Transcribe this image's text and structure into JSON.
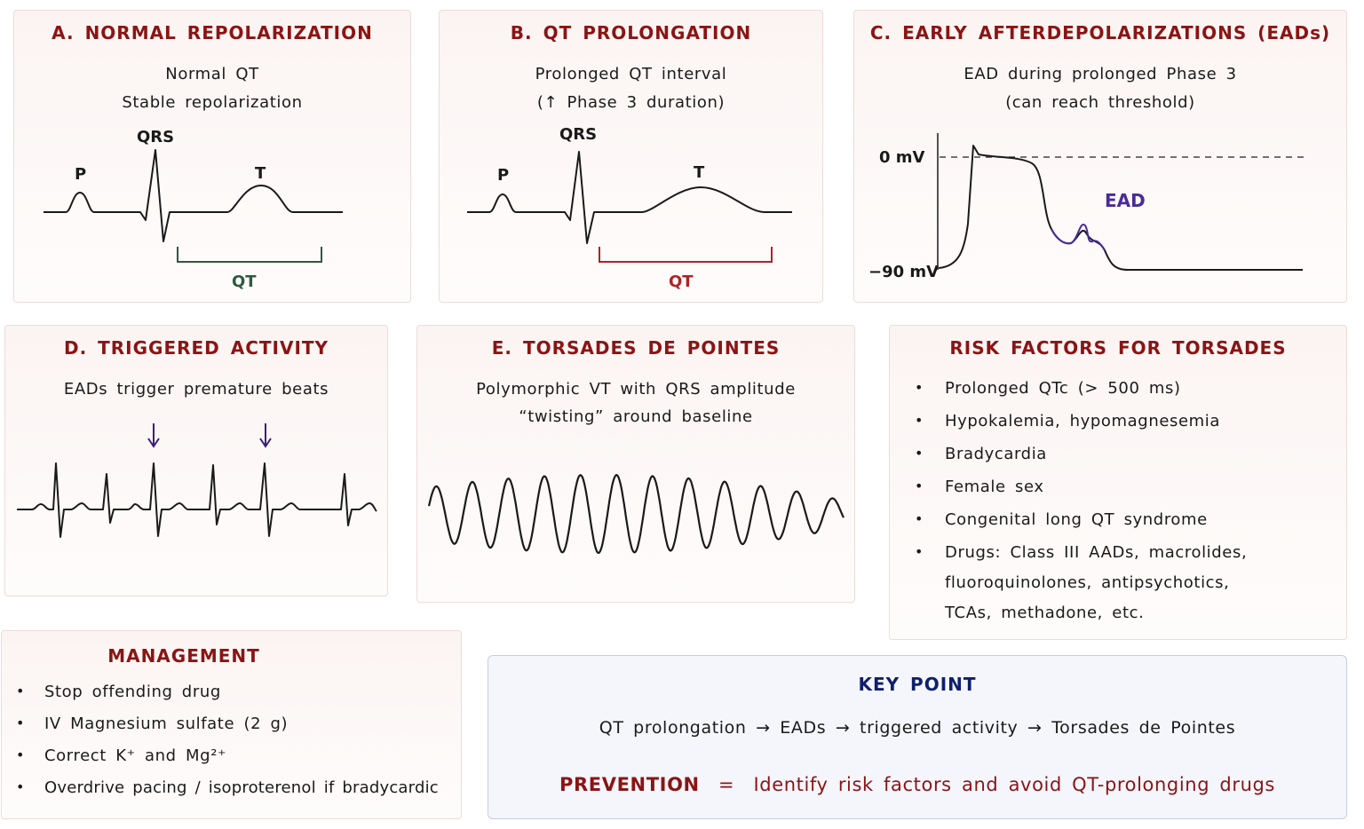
{
  "colors": {
    "title_red": "#8b1414",
    "navy": "#0f1f6e",
    "ead_purple": "#4b2a9a",
    "qt_green": "#2e5a3e",
    "qt_red": "#b22222"
  },
  "panel_a": {
    "title": "A.  NORMAL  REPOLARIZATION",
    "line1": "Normal  QT",
    "line2": "Stable  repolarization",
    "qrs": "QRS",
    "p": "P",
    "t": "T",
    "qt": "QT"
  },
  "panel_b": {
    "title": "B.  QT  PROLONGATION",
    "line1": "Prolonged  QT  interval",
    "line2": "(↑  Phase  3  duration)",
    "qrs": "QRS",
    "p": "P",
    "t": "T",
    "qt": "QT"
  },
  "panel_c": {
    "title": "C.  EARLY  AFTERDEPOLARIZATIONS  (EADs)",
    "line1": "EAD  during  prolonged  Phase  3",
    "line2": "(can  reach  threshold)",
    "zero_label": "0 mV",
    "neg_label": "−90 mV",
    "ead_label": "EAD"
  },
  "panel_d": {
    "title": "D.  TRIGGERED  ACTIVITY",
    "line1": "EADs  trigger  premature  beats"
  },
  "panel_e": {
    "title": "E.  TORSADES  DE  POINTES",
    "line1": "Polymorphic  VT  with  QRS  amplitude",
    "line2": "“twisting”  around  baseline"
  },
  "risk": {
    "title": "RISK  FACTORS  FOR  TORSADES",
    "items": [
      "Prolonged  QTc  (>  500  ms)",
      "Hypokalemia,  hypomagnesemia",
      "Bradycardia",
      "Female  sex",
      "Congenital  long  QT  syndrome",
      "Drugs:  Class  III  AADs,  macrolides,",
      "fluoroquinolones,  antipsychotics,",
      "TCAs,  methadone,  etc."
    ]
  },
  "management": {
    "title": "MANAGEMENT",
    "items": [
      "Stop  offending  drug",
      "IV  Magnesium  sulfate  (2  g)",
      "Correct  K⁺  and  Mg²⁺",
      "Overdrive  pacing  /  isoproterenol  if  bradycardic"
    ]
  },
  "key_point": {
    "title": "KEY  POINT",
    "chain": "QT  prolongation  →  EADs  →  triggered  activity  →  Torsades  de  Pointes",
    "prevention_label": "PREVENTION",
    "prevention_eq": "=",
    "prevention_text": "Identify  risk  factors  and  avoid  QT-prolonging  drugs"
  }
}
